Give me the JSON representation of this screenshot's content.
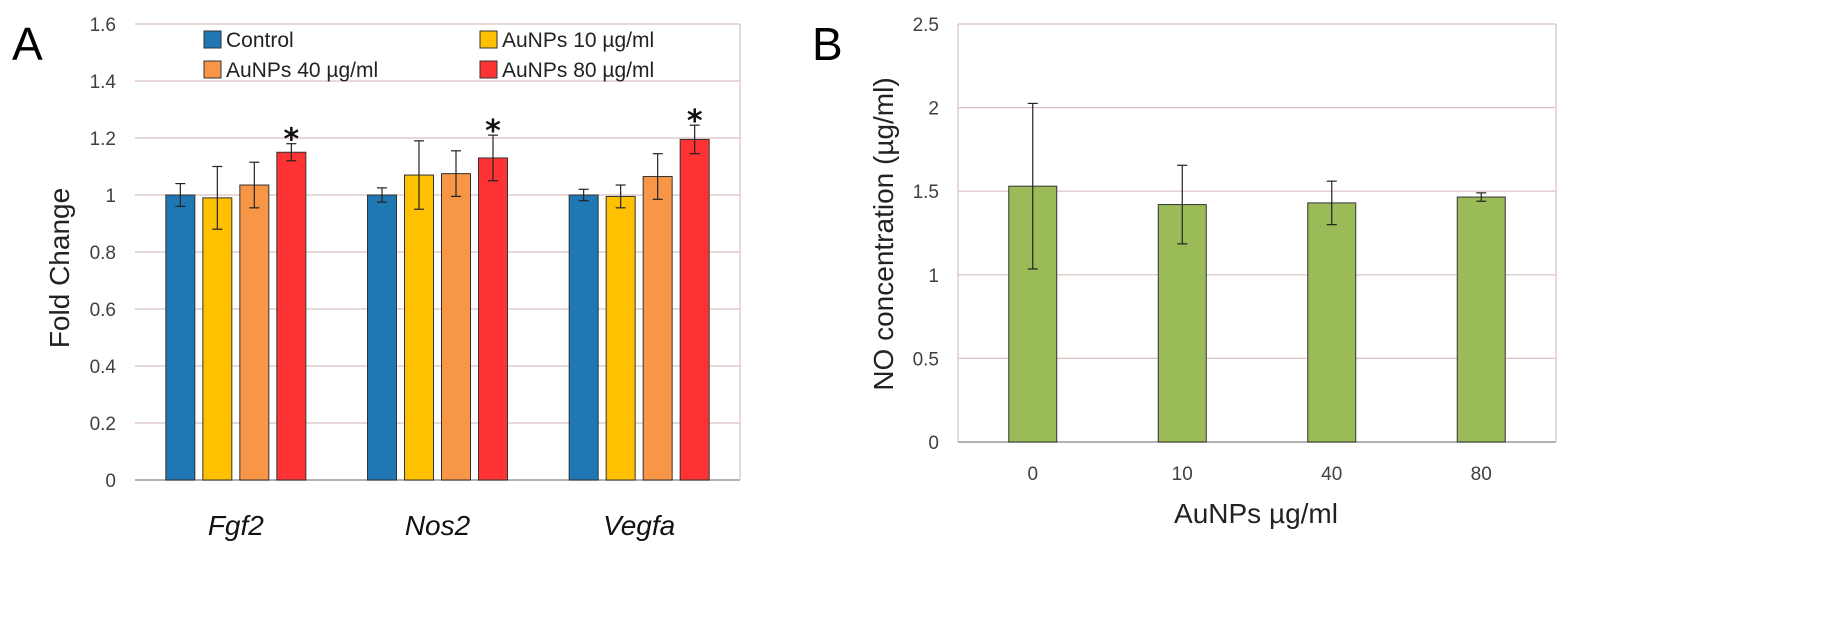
{
  "chart_data": [
    {
      "panel": "A",
      "type": "bar",
      "title": "",
      "xlabel": "",
      "ylabel": "Fold Change",
      "ylim": [
        0,
        1.6
      ],
      "yticks": [
        "0",
        "0.2",
        "0.4",
        "0.6",
        "0.8",
        "1",
        "1.2",
        "1.4",
        "1.6"
      ],
      "grid": true,
      "legend_position": "top",
      "categories": [
        "Fgf2",
        "Nos2",
        "Vegfa"
      ],
      "series": [
        {
          "name": "Control",
          "color": "#1f77b4",
          "values": [
            1.0,
            1.0,
            1.0
          ],
          "errors": [
            0.04,
            0.025,
            0.02
          ]
        },
        {
          "name": "AuNPs 10 µg/ml",
          "color": "#ffc000",
          "values": [
            0.99,
            1.07,
            0.995
          ],
          "errors": [
            0.11,
            0.12,
            0.04
          ]
        },
        {
          "name": "AuNPs 40 µg/ml",
          "color": "#f79646",
          "values": [
            1.035,
            1.075,
            1.065
          ],
          "errors": [
            0.08,
            0.08,
            0.08
          ]
        },
        {
          "name": "AuNPs 80 µg/ml",
          "color": "#ff3333",
          "values": [
            1.15,
            1.13,
            1.195
          ],
          "errors": [
            0.03,
            0.08,
            0.05
          ]
        }
      ],
      "significance": [
        {
          "category": "Fgf2",
          "series": "AuNPs 80 µg/ml",
          "mark": "*"
        },
        {
          "category": "Nos2",
          "series": "AuNPs 80 µg/ml",
          "mark": "*"
        },
        {
          "category": "Vegfa",
          "series": "AuNPs 80 µg/ml",
          "mark": "*"
        }
      ]
    },
    {
      "panel": "B",
      "type": "bar",
      "title": "",
      "xlabel": "AuNPs µg/ml",
      "ylabel": "NO concentration (µg/ml)",
      "ylim": [
        0,
        2.5
      ],
      "yticks": [
        "0",
        "0.5",
        "1",
        "1.5",
        "2",
        "2.5"
      ],
      "grid": true,
      "categories": [
        "0",
        "10",
        "40",
        "80"
      ],
      "color": "#9bbb59",
      "values": [
        1.53,
        1.42,
        1.43,
        1.465
      ],
      "errors": [
        0.495,
        0.235,
        0.13,
        0.025
      ]
    }
  ]
}
